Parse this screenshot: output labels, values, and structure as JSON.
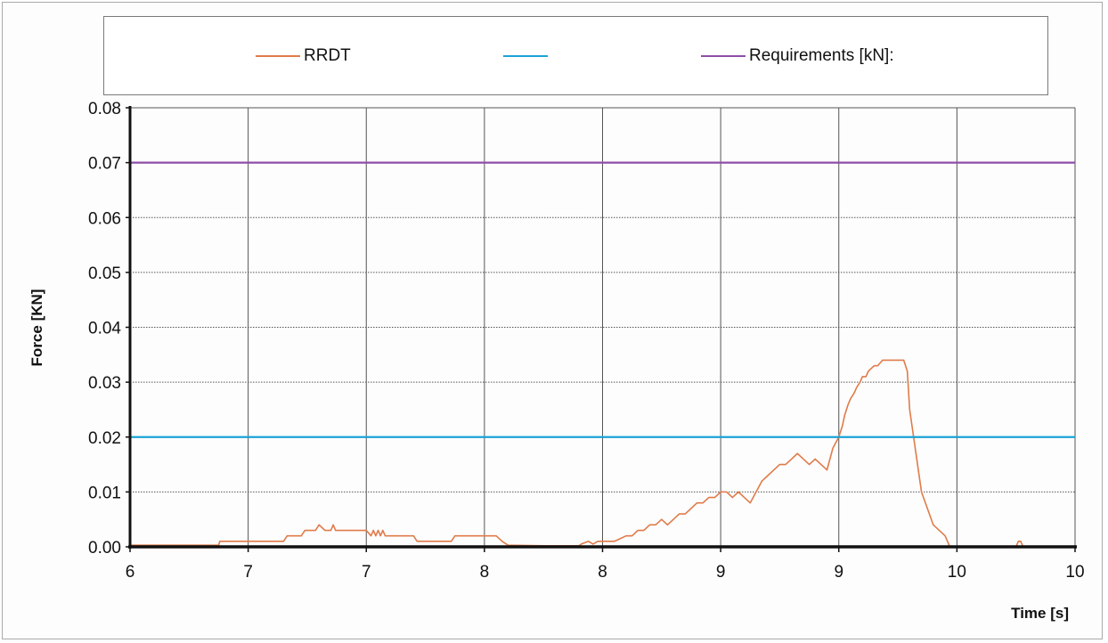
{
  "colors": {
    "rrdt": "#e07b4a",
    "cyan_line": "#1aa3d6",
    "requirements": "#8e4fa6",
    "grid": "#555555",
    "axis": "#111111"
  },
  "legend": {
    "rrdt_label": "RRDT",
    "cyan_label": "",
    "requirements_label": "Requirements [kN]:"
  },
  "chart_data": {
    "type": "line",
    "xlabel": "Time [s]",
    "ylabel": "Force [KN]",
    "ylim": [
      0,
      0.08
    ],
    "grid": true,
    "legend_position": "top",
    "x_tick_labels": [
      "6",
      "7",
      "7",
      "8",
      "8",
      "9",
      "9",
      "10",
      "10"
    ],
    "y_tick_labels": [
      "0.00",
      "0.01",
      "0.02",
      "0.03",
      "0.04",
      "0.05",
      "0.06",
      "0.07",
      "0.08"
    ],
    "y_ticks": [
      0.0,
      0.01,
      0.02,
      0.03,
      0.04,
      0.05,
      0.06,
      0.07,
      0.08
    ],
    "series": [
      {
        "name": "RRDT",
        "color": "#e07b4a",
        "x": [
          0.0,
          0.75,
          0.76,
          1.05,
          1.3,
          1.33,
          1.35,
          1.45,
          1.48,
          1.5,
          1.55,
          1.57,
          1.6,
          1.65,
          1.7,
          1.72,
          1.74,
          1.76,
          1.8,
          2.0,
          2.04,
          2.06,
          2.08,
          2.1,
          2.12,
          2.14,
          2.16,
          2.2,
          2.4,
          2.43,
          2.45,
          2.72,
          2.75,
          2.78,
          3.1,
          3.15,
          3.2,
          3.5,
          3.8,
          3.82,
          3.88,
          3.92,
          3.96,
          4.0,
          4.05,
          4.1,
          4.2,
          4.25,
          4.3,
          4.35,
          4.4,
          4.45,
          4.5,
          4.55,
          4.6,
          4.65,
          4.7,
          4.75,
          4.8,
          4.85,
          4.9,
          4.95,
          5.0,
          5.05,
          5.1,
          5.15,
          5.2,
          5.25,
          5.3,
          5.35,
          5.4,
          5.45,
          5.5,
          5.55,
          5.6,
          5.65,
          5.7,
          5.75,
          5.8,
          5.85,
          5.9,
          5.95,
          6.0,
          6.03,
          6.05,
          6.08,
          6.1,
          6.13,
          6.15,
          6.18,
          6.2,
          6.23,
          6.25,
          6.3,
          6.33,
          6.37,
          6.4,
          6.45,
          6.5,
          6.55,
          6.58,
          6.6,
          6.64,
          6.7,
          6.8,
          6.9,
          6.94,
          6.96,
          6.98,
          7.0,
          7.02,
          7.05,
          7.08,
          7.12,
          7.2,
          7.5,
          7.52,
          7.54,
          7.56,
          7.58,
          7.6,
          7.8,
          8.0
        ],
        "y": [
          0.0003,
          0.0003,
          0.001,
          0.001,
          0.001,
          0.002,
          0.002,
          0.002,
          0.003,
          0.003,
          0.003,
          0.003,
          0.004,
          0.003,
          0.003,
          0.004,
          0.003,
          0.003,
          0.003,
          0.003,
          0.002,
          0.003,
          0.002,
          0.003,
          0.002,
          0.003,
          0.002,
          0.002,
          0.002,
          0.001,
          0.001,
          0.001,
          0.002,
          0.002,
          0.002,
          0.001,
          0.0003,
          0.0002,
          0.0002,
          0.0005,
          0.001,
          0.0005,
          0.001,
          0.001,
          0.001,
          0.001,
          0.002,
          0.002,
          0.003,
          0.003,
          0.004,
          0.004,
          0.005,
          0.004,
          0.005,
          0.006,
          0.006,
          0.007,
          0.008,
          0.008,
          0.009,
          0.009,
          0.01,
          0.01,
          0.009,
          0.01,
          0.009,
          0.008,
          0.01,
          0.012,
          0.013,
          0.014,
          0.015,
          0.015,
          0.016,
          0.017,
          0.016,
          0.015,
          0.016,
          0.015,
          0.014,
          0.018,
          0.02,
          0.022,
          0.024,
          0.026,
          0.027,
          0.028,
          0.029,
          0.03,
          0.031,
          0.031,
          0.032,
          0.033,
          0.033,
          0.034,
          0.034,
          0.034,
          0.034,
          0.034,
          0.032,
          0.025,
          0.019,
          0.01,
          0.004,
          0.002,
          0.0,
          0.0,
          0.0,
          0.0,
          0.0,
          0.0,
          0.0,
          0.0,
          0.0,
          0.0,
          0.001,
          0.001,
          0.0,
          0.0,
          0.0,
          0.0,
          0.0
        ]
      },
      {
        "color": "#1aa3d6",
        "x": [
          0,
          8
        ],
        "y": [
          0.02,
          0.02
        ]
      },
      {
        "name": "Requirements [kN]:",
        "color": "#8e4fa6",
        "x": [
          0,
          8
        ],
        "y": [
          0.07,
          0.07
        ]
      }
    ]
  }
}
